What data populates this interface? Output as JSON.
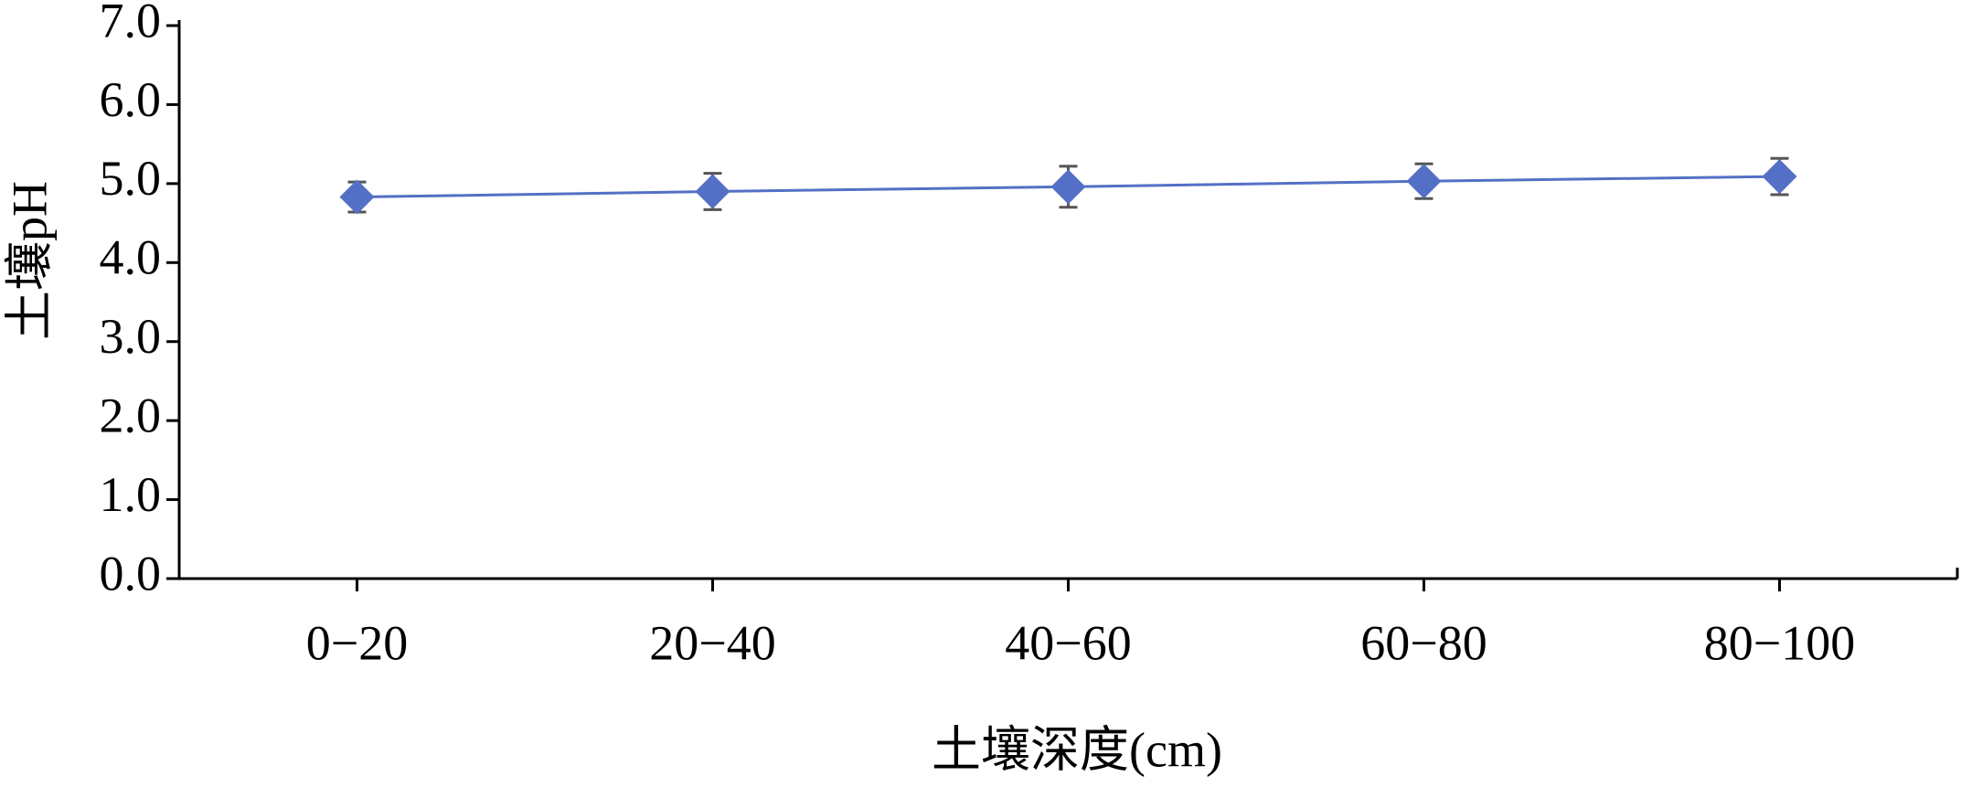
{
  "chart_data": {
    "type": "line",
    "x_label": "土壤深度(cm)",
    "y_label": "土壤pH",
    "categories": [
      "0−20",
      "20−40",
      "40−60",
      "60−80",
      "80−100"
    ],
    "series": [
      {
        "name": "土壤pH",
        "color": "#5470c6",
        "values": [
          4.83,
          4.9,
          4.96,
          5.03,
          5.09
        ],
        "errors": [
          0.19,
          0.23,
          0.26,
          0.22,
          0.23
        ]
      }
    ],
    "ylim": [
      0,
      7
    ],
    "yticks": [
      {
        "value": 0,
        "label": "0.0"
      },
      {
        "value": 1,
        "label": "1.0"
      },
      {
        "value": 2,
        "label": "2.0"
      },
      {
        "value": 3,
        "label": "3.0"
      },
      {
        "value": 4,
        "label": "4.0"
      },
      {
        "value": 5,
        "label": "5.0"
      },
      {
        "value": 6,
        "label": "6.0"
      },
      {
        "value": 7,
        "label": "7.0"
      }
    ],
    "grid": false,
    "legend": false
  }
}
